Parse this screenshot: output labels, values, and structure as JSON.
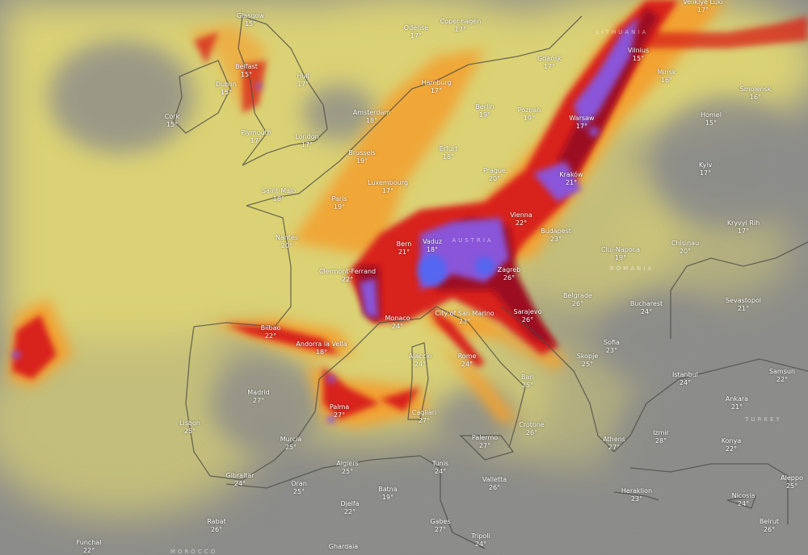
{
  "map": {
    "layer": "rain-thunder intensity",
    "colors": {
      "base": "#8c8c8a",
      "light": "#e9df72",
      "moderate": "#f2a232",
      "heavy": "#d8241c",
      "very_heavy": "#9c1020",
      "extreme": "#8a55d8",
      "peak": "#5566f0"
    },
    "cities": [
      {
        "name": "Glasgow",
        "temp": "15°"
      },
      {
        "name": "Belfast",
        "temp": "15°"
      },
      {
        "name": "Dublin",
        "temp": "15°"
      },
      {
        "name": "Cork",
        "temp": "15°"
      },
      {
        "name": "Hull",
        "temp": "17°"
      },
      {
        "name": "Plymouth",
        "temp": "17°"
      },
      {
        "name": "London",
        "temp": "17°"
      },
      {
        "name": "Odense",
        "temp": "17°"
      },
      {
        "name": "Copenhagen",
        "temp": "17°"
      },
      {
        "name": "Hamburg",
        "temp": "17°"
      },
      {
        "name": "Amsterdam",
        "temp": "18°"
      },
      {
        "name": "Brussels",
        "temp": "19°"
      },
      {
        "name": "Erfurt",
        "temp": "18°"
      },
      {
        "name": "Berlin",
        "temp": "19°"
      },
      {
        "name": "Luxembourg",
        "temp": "17°"
      },
      {
        "name": "Paris",
        "temp": "19°"
      },
      {
        "name": "Saint-Malo",
        "temp": "18°"
      },
      {
        "name": "Nantes",
        "temp": "20°"
      },
      {
        "name": "Clermont-Ferrand",
        "temp": "22°"
      },
      {
        "name": "Bern",
        "temp": "21°"
      },
      {
        "name": "Vaduz",
        "temp": "18°"
      },
      {
        "name": "Vienna",
        "temp": "22°"
      },
      {
        "name": "Budapest",
        "temp": "23°"
      },
      {
        "name": "Zagreb",
        "temp": "26°"
      },
      {
        "name": "Monaco",
        "temp": "24°"
      },
      {
        "name": "City of San Marino",
        "temp": "23°"
      },
      {
        "name": "Bilbao",
        "temp": "22°"
      },
      {
        "name": "Andorra la Vella",
        "temp": "18°"
      },
      {
        "name": "Ajaccio",
        "temp": "24°"
      },
      {
        "name": "Rome",
        "temp": "24°"
      },
      {
        "name": "Madrid",
        "temp": "27°"
      },
      {
        "name": "Palma",
        "temp": "27°"
      },
      {
        "name": "Cagliari",
        "temp": "27°"
      },
      {
        "name": "Lisbon",
        "temp": "25°"
      },
      {
        "name": "Murcia",
        "temp": "25°"
      },
      {
        "name": "Palermo",
        "temp": "27°"
      },
      {
        "name": "Algiers",
        "temp": "25°"
      },
      {
        "name": "Tunis",
        "temp": "24°"
      },
      {
        "name": "Valletta",
        "temp": "26°"
      },
      {
        "name": "Gibraltar",
        "temp": "24°"
      },
      {
        "name": "Oran",
        "temp": "25°"
      },
      {
        "name": "Batna",
        "temp": "19°"
      },
      {
        "name": "Djelfa",
        "temp": "22°"
      },
      {
        "name": "Rabat",
        "temp": "26°"
      },
      {
        "name": "Gabes",
        "temp": "27°"
      },
      {
        "name": "Tripoli",
        "temp": "24°"
      },
      {
        "name": "Ghardaia",
        "temp": ""
      },
      {
        "name": "Funchal",
        "temp": "22°"
      },
      {
        "name": "Bari",
        "temp": "25°"
      },
      {
        "name": "Crotone",
        "temp": "26°"
      },
      {
        "name": "Sarajevo",
        "temp": "26°"
      },
      {
        "name": "Belgrade",
        "temp": "26°"
      },
      {
        "name": "Cluj-Napoca",
        "temp": "19°"
      },
      {
        "name": "Bucharest",
        "temp": "24°"
      },
      {
        "name": "Chisinau",
        "temp": "20°"
      },
      {
        "name": "Sofia",
        "temp": "23°"
      },
      {
        "name": "Skopje",
        "temp": "25°"
      },
      {
        "name": "Athens",
        "temp": "27°"
      },
      {
        "name": "Izmir",
        "temp": "28°"
      },
      {
        "name": "Istanbul",
        "temp": "24°"
      },
      {
        "name": "Ankara",
        "temp": "21°"
      },
      {
        "name": "Konya",
        "temp": "22°"
      },
      {
        "name": "Samsun",
        "temp": "22°"
      },
      {
        "name": "Sevastopol",
        "temp": "21°"
      },
      {
        "name": "Kryvyi Rih",
        "temp": "17°"
      },
      {
        "name": "Heraklion",
        "temp": "23°"
      },
      {
        "name": "Nicosia",
        "temp": "24°"
      },
      {
        "name": "Aleppo",
        "temp": "25°"
      },
      {
        "name": "Beirut",
        "temp": "26°"
      },
      {
        "name": "Warsaw",
        "temp": "17°"
      },
      {
        "name": "Vilnius",
        "temp": "15°"
      },
      {
        "name": "Kraków",
        "temp": "21°"
      },
      {
        "name": "Poznań",
        "temp": "19°"
      },
      {
        "name": "Prague",
        "temp": "20°"
      },
      {
        "name": "Minsk",
        "temp": "16°"
      },
      {
        "name": "Kyiv",
        "temp": "17°"
      },
      {
        "name": "Homel",
        "temp": "15°"
      },
      {
        "name": "Velikiye Luki",
        "temp": "17°"
      },
      {
        "name": "Smolensk",
        "temp": "16°"
      },
      {
        "name": "Gdańsk",
        "temp": "17°"
      }
    ],
    "regions": [
      "LITHUANIA",
      "ROMANIA",
      "TURKEY",
      "MOROCCO",
      "AUSTRIA"
    ]
  }
}
